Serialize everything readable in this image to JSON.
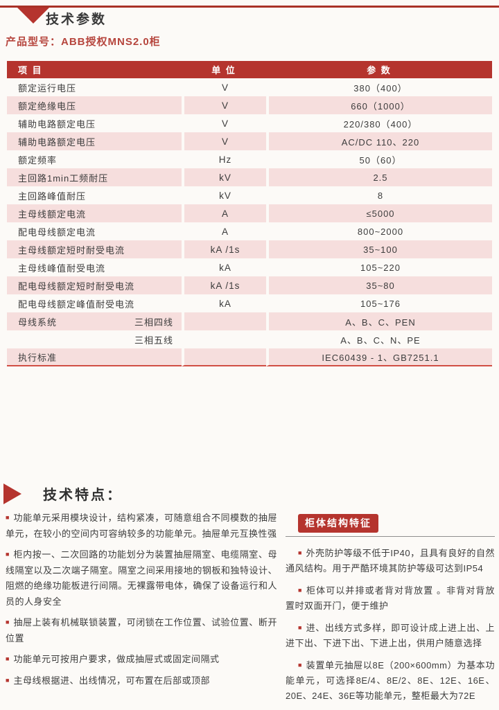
{
  "page": {
    "bg_color": "#FCFAF7",
    "accent_color": "#B5342E",
    "pink_row_color": "#F6DEDD"
  },
  "icons": {
    "section_marker": "triangle-down-icon",
    "features_marker": "triangle-right-icon",
    "bullet_glyph": "■"
  },
  "header": {
    "section_title": "技术参数",
    "product_label": "产品型号：ABB授权MNS2.0柜"
  },
  "table": {
    "columns": [
      "项 目",
      "单 位",
      "参 数"
    ],
    "rows": [
      {
        "item": "额定运行电压",
        "unit": "V",
        "value": "380（400）"
      },
      {
        "item": "额定绝缘电压",
        "unit": "V",
        "value": "660（1000）"
      },
      {
        "item": "辅助电路额定电压",
        "unit": "V",
        "value": "220/380（400）"
      },
      {
        "item": "辅助电路额定电压",
        "unit": "V",
        "value": "AC/DC 110、220"
      },
      {
        "item": "额定频率",
        "unit": "Hz",
        "value": "50（60）"
      },
      {
        "item": "主回路1min工频耐压",
        "unit": "kV",
        "value": "2.5"
      },
      {
        "item": "主回路峰值耐压",
        "unit": "kV",
        "value": "8"
      },
      {
        "item": "主母线额定电流",
        "unit": "A",
        "value": "≤5000"
      },
      {
        "item": "配电母线额定电流",
        "unit": "A",
        "value": "800~2000"
      },
      {
        "item": "主母线额定短时耐受电流",
        "unit": "kA /1s",
        "value": "35~100"
      },
      {
        "item": "主母线峰值耐受电流",
        "unit": "kA",
        "value": "105~220"
      },
      {
        "item": "配电母线额定短时耐受电流",
        "unit": "kA /1s",
        "value": "35~80"
      },
      {
        "item": "配电母线额定峰值耐受电流",
        "unit": "kA",
        "value": "105~176"
      },
      {
        "item": "母线系统",
        "sub": "三相四线",
        "unit": "",
        "value": "A、B、C、PEN"
      },
      {
        "item": "",
        "sub": "三相五线",
        "unit": "",
        "value": "A、B、C、N、PE"
      },
      {
        "item": "执行标准",
        "unit": "",
        "value": "IEC60439 - 1、GB7251.1"
      }
    ]
  },
  "features": {
    "title": "技术特点：",
    "left_bullets": [
      "功能单元采用模块设计，结构紧凑，可随意组合不同模数的抽屉单元，在较小的空间内可容纳较多的功能单元。抽屉单元互换性强",
      "柜内按一、二次回路的功能划分为装置抽屉隔室、电缆隔室、母线隔室以及二次端子隔室。隔室之间采用接地的钢板和独特设计、阻燃的绝缘功能板进行间隔。无裸露带电体，确保了设备运行和人员的人身安全",
      "抽屉上装有机械联锁装置，可闭锁在工作位置、试验位置、断开位置",
      "功能单元可按用户要求，做成抽屉式或固定间隔式",
      "主母线根据进、出线情况，可布置在后部或顶部"
    ],
    "cabinet": {
      "title": "柜体结构特征",
      "bullets": [
        "外壳防护等级不低于IP40，且具有良好的自然通风结构。用于严酷环境其防护等级可达到IP54",
        "柜体可以并排或者背对背放置 。非背对背放置时双面开门，便于维护",
        "进、出线方式多样，即可设计成上进上出、上进下出、下进下出、下进上出，供用户随意选择",
        "装置单元抽屉以8E（200×600mm）为基本功能单元，可选择8E/4、8E/2、8E、12E、16E、20E、24E、36E等功能单元，整柜最大为72E"
      ]
    }
  }
}
